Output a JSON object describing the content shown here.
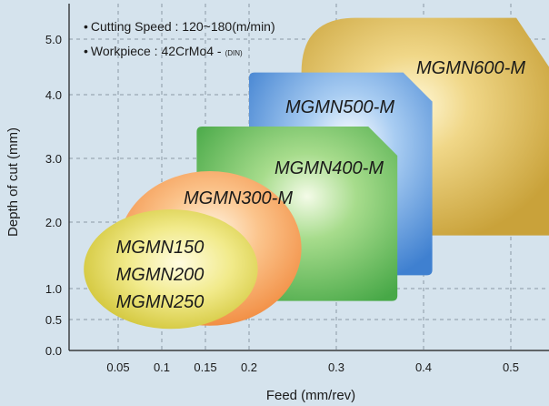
{
  "chart_data": {
    "type": "area",
    "title": "",
    "xlabel": "Feed (mm/rev)",
    "ylabel": "Depth of cut (mm)",
    "xlim": [
      0,
      0.55
    ],
    "ylim": [
      0,
      5.5
    ],
    "x_ticks": [
      0.05,
      0.1,
      0.15,
      0.2,
      0.3,
      0.4,
      0.5
    ],
    "x_tick_labels": [
      "0.05",
      "0.1",
      "0.15",
      "0.2",
      "0.3",
      "0.4",
      "0.5"
    ],
    "y_ticks": [
      0.0,
      0.5,
      1.0,
      2.0,
      3.0,
      4.0,
      5.0
    ],
    "y_tick_labels": [
      "0.0",
      "0.5",
      "1.0",
      "2.0",
      "3.0",
      "4.0",
      "5.0"
    ],
    "grid": true,
    "annotations": [
      {
        "bullet": "•",
        "text": "Cutting Speed : 120~180(m/min)"
      },
      {
        "bullet": "•",
        "text": "Workpiece : 42CrMo4 -",
        "suffix": "(DIN)"
      }
    ],
    "regions": [
      {
        "name": "MGMN600-M",
        "shape": "octagon",
        "feed_range": [
          0.26,
          0.55
        ],
        "depth_range": [
          1.8,
          5.3
        ],
        "color": "#d1ae4a"
      },
      {
        "name": "MGMN500-M",
        "shape": "clipped-rect",
        "feed_range": [
          0.2,
          0.41
        ],
        "depth_range": [
          1.2,
          4.4
        ],
        "color": "#4f8fd6"
      },
      {
        "name": "MGMN400-M",
        "shape": "clipped-rect",
        "feed_range": [
          0.14,
          0.37
        ],
        "depth_range": [
          0.8,
          3.5
        ],
        "color": "#55b555"
      },
      {
        "name": "MGMN300-M",
        "shape": "ellipse",
        "feed_range": [
          0.05,
          0.26
        ],
        "depth_range": [
          0.4,
          2.8
        ],
        "color": "#f7a25e"
      },
      {
        "name": "MGMN150\nMGMN200\nMGMN250",
        "labels": [
          "MGMN150",
          "MGMN200",
          "MGMN250"
        ],
        "shape": "ellipse",
        "feed_range": [
          0.015,
          0.21
        ],
        "depth_range": [
          0.35,
          2.2
        ],
        "color": "#dcd34a"
      }
    ]
  }
}
